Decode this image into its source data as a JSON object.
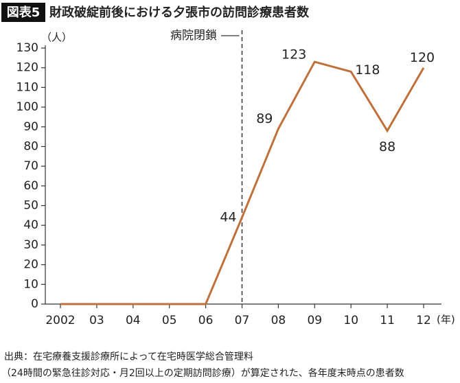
{
  "chart_data": {
    "type": "line",
    "badge": "図表5",
    "title": "財政破綻前後における夕張市の訪問診療患者数",
    "y_unit": "（人）",
    "x_unit": "(年)",
    "categories": [
      "2002",
      "03",
      "04",
      "05",
      "06",
      "07",
      "08",
      "09",
      "10",
      "11",
      "12"
    ],
    "values": [
      0,
      0,
      0,
      0,
      0,
      44,
      89,
      123,
      118,
      88,
      120
    ],
    "value_labels": [
      null,
      null,
      null,
      null,
      null,
      "44",
      "89",
      "123",
      "118",
      "88",
      "120"
    ],
    "color": "#c0703a",
    "ylim": [
      0,
      130
    ],
    "yticks": [
      0,
      10,
      20,
      30,
      40,
      50,
      60,
      70,
      80,
      90,
      100,
      110,
      120,
      130
    ],
    "event": {
      "label": "病院閉鎖",
      "at": "07"
    },
    "source": [
      "出典：在宅療養支援診療所によって在宅時医学総合管理料",
      "（24時間の緊急往診対応・月2回以上の定期訪問診療）が算定された、各年度末時点の患者数"
    ]
  }
}
